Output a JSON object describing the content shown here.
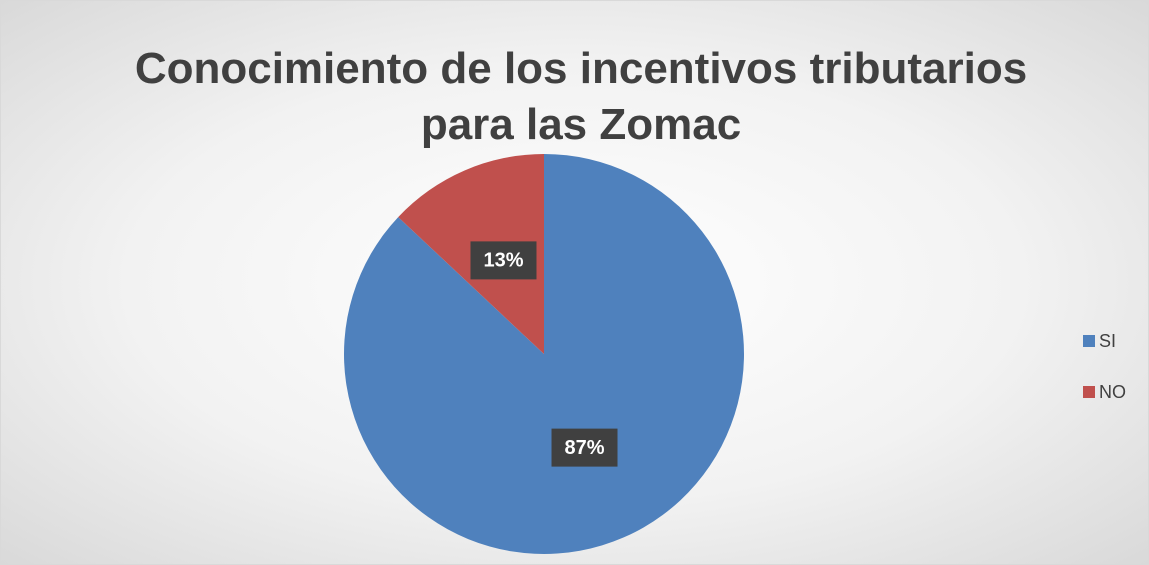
{
  "chart_data": {
    "type": "pie",
    "title": "Conocimiento de los incentivos tributarios para las Zomac",
    "categories": [
      "SI",
      "NO"
    ],
    "values": [
      87,
      13
    ],
    "value_labels": [
      "87%",
      "13%"
    ],
    "colors": [
      "#4f81bd",
      "#c0504d"
    ],
    "legend": "right"
  }
}
